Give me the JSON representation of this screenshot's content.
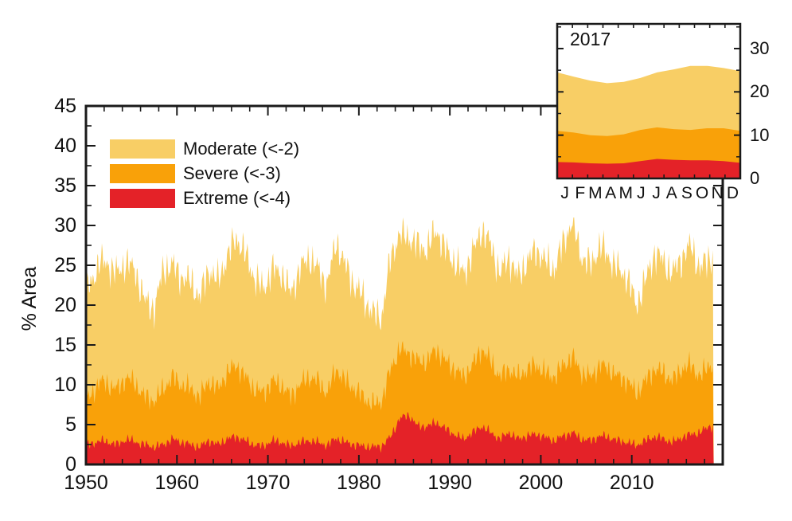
{
  "figure": {
    "background": "#ffffff",
    "axis_color": "#1a1a1a",
    "text_color": "#111111"
  },
  "chart_data": [
    {
      "type": "area",
      "subtype": "stacked",
      "title": "",
      "xlabel": "",
      "ylabel": "% Area",
      "xlim": [
        1950,
        2020
      ],
      "ylim": [
        0,
        45
      ],
      "xticks_major_step": 10,
      "xticks_minor_step": 2,
      "yticks_major_step": 5,
      "yticks_minor_step": 2.5,
      "xtick_labels": [
        "1950",
        "1960",
        "1970",
        "1980",
        "1990",
        "2000",
        "2010"
      ],
      "xtick_label_values": [
        1950,
        1960,
        1970,
        1980,
        1990,
        2000,
        2010
      ],
      "ytick_labels": [
        "0",
        "5",
        "10",
        "15",
        "20",
        "25",
        "30",
        "35",
        "40",
        "45"
      ],
      "ytick_label_values": [
        0,
        5,
        10,
        15,
        20,
        25,
        30,
        35,
        40,
        45
      ],
      "grid": false,
      "legend_position": "upper-left-inside",
      "years": {
        "start": 1950,
        "end": 2018,
        "sampling": "monthly (annual estimates listed, values are cumulative stacked tops in % area)"
      },
      "series": [
        {
          "name": "Moderate (<-2)",
          "color": "#F8CE65",
          "noise_amp": 2.3,
          "cumulative_top_percent": [
            22.5,
            25.5,
            25.0,
            24.0,
            25.5,
            24.0,
            20.5,
            19.5,
            24.5,
            25.0,
            23.5,
            23.0,
            21.0,
            24.5,
            23.0,
            26.0,
            28.5,
            26.5,
            23.5,
            22.0,
            24.5,
            24.0,
            21.5,
            24.5,
            26.0,
            24.5,
            22.5,
            28.0,
            25.0,
            22.5,
            21.0,
            19.0,
            18.5,
            26.0,
            29.0,
            28.5,
            27.5,
            27.0,
            29.5,
            27.0,
            25.5,
            24.0,
            26.5,
            29.5,
            27.5,
            24.0,
            26.0,
            23.5,
            25.5,
            27.0,
            25.5,
            24.5,
            28.0,
            30.5,
            26.0,
            25.0,
            27.5,
            26.0,
            24.5,
            23.5,
            20.0,
            23.0,
            26.5,
            25.5,
            24.0,
            26.0,
            27.5,
            24.5,
            26.0
          ]
        },
        {
          "name": "Severe (<-3)",
          "color": "#F9A109",
          "noise_amp": 1.5,
          "cumulative_top_percent": [
            8.5,
            10.5,
            10.0,
            9.5,
            11.0,
            10.0,
            8.5,
            8.0,
            9.5,
            11.0,
            10.0,
            9.5,
            8.5,
            10.5,
            9.5,
            11.5,
            12.5,
            11.0,
            9.5,
            9.0,
            10.5,
            10.0,
            8.5,
            10.0,
            11.0,
            10.5,
            9.0,
            12.0,
            10.5,
            9.5,
            8.5,
            7.5,
            8.0,
            12.0,
            14.5,
            14.0,
            13.0,
            13.0,
            14.5,
            13.0,
            12.0,
            11.0,
            12.5,
            14.5,
            13.0,
            11.0,
            12.0,
            11.0,
            12.0,
            12.5,
            11.5,
            11.0,
            12.5,
            13.5,
            11.5,
            11.0,
            12.5,
            12.0,
            11.0,
            10.5,
            9.0,
            10.5,
            12.0,
            11.5,
            10.5,
            12.0,
            12.5,
            11.0,
            12.5
          ]
        },
        {
          "name": "Extreme (<-4)",
          "color": "#E42228",
          "noise_amp": 0.65,
          "cumulative_top_percent": [
            2.5,
            3.0,
            2.8,
            2.5,
            3.2,
            2.8,
            2.5,
            2.2,
            2.5,
            3.2,
            2.8,
            2.5,
            2.2,
            3.0,
            2.5,
            3.2,
            3.5,
            3.0,
            2.5,
            2.3,
            3.0,
            2.8,
            2.3,
            2.8,
            3.0,
            2.8,
            2.4,
            3.3,
            2.8,
            2.5,
            2.3,
            2.2,
            2.3,
            3.5,
            5.8,
            6.2,
            4.8,
            4.8,
            5.3,
            4.5,
            3.8,
            3.2,
            4.0,
            4.8,
            4.0,
            3.2,
            4.0,
            3.2,
            3.6,
            3.8,
            3.4,
            3.0,
            3.6,
            4.0,
            3.2,
            3.0,
            3.6,
            3.4,
            3.0,
            2.8,
            2.4,
            3.0,
            3.5,
            3.2,
            2.8,
            3.4,
            3.8,
            4.0,
            4.8
          ]
        }
      ]
    },
    {
      "type": "area",
      "subtype": "stacked",
      "title": "2017",
      "x_labels": [
        "J",
        "F",
        "M",
        "A",
        "M",
        "J",
        "J",
        "A",
        "S",
        "O",
        "N",
        "D"
      ],
      "ylim": [
        0,
        35.7
      ],
      "yticks_major_step": 10,
      "yticks_minor_step": 5,
      "ytick_labels": [
        "0",
        "10",
        "20",
        "30"
      ],
      "ytick_label_values": [
        0,
        10,
        20,
        30
      ],
      "ytick_side": "right",
      "grid": false,
      "series": [
        {
          "name": "Moderate (<-2)",
          "color": "#F8CE65",
          "cumulative_top_percent": [
            24.5,
            23.5,
            22.6,
            22.0,
            22.3,
            23.2,
            24.5,
            25.2,
            26.0,
            26.0,
            25.5,
            24.8
          ]
        },
        {
          "name": "Severe (<-3)",
          "color": "#F9A109",
          "cumulative_top_percent": [
            11.0,
            10.6,
            10.0,
            9.8,
            10.2,
            11.2,
            11.8,
            11.4,
            11.2,
            11.6,
            11.6,
            11.0
          ]
        },
        {
          "name": "Extreme (<-4)",
          "color": "#E42228",
          "cumulative_top_percent": [
            3.8,
            3.7,
            3.5,
            3.4,
            3.5,
            4.0,
            4.5,
            4.3,
            4.2,
            4.2,
            4.0,
            3.6
          ]
        }
      ]
    }
  ]
}
